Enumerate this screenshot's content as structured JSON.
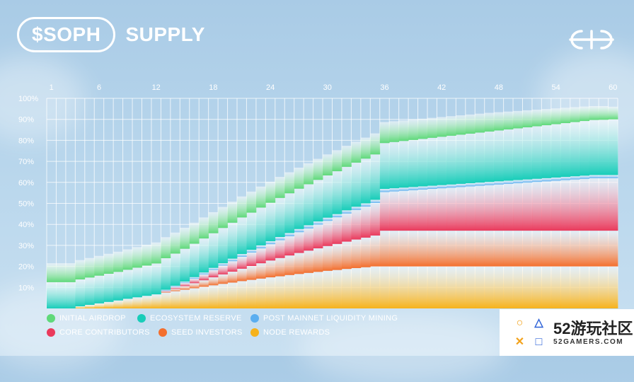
{
  "header": {
    "ticker": "$SOPH",
    "title": "SUPPLY",
    "logo_icon": "sophon-logo-icon"
  },
  "chart_data": {
    "type": "area",
    "stacked": true,
    "x": [
      1,
      2,
      3,
      4,
      5,
      6,
      7,
      8,
      9,
      10,
      11,
      12,
      13,
      14,
      15,
      16,
      17,
      18,
      19,
      20,
      21,
      22,
      23,
      24,
      25,
      26,
      27,
      28,
      29,
      30,
      31,
      32,
      33,
      34,
      35,
      36,
      37,
      38,
      39,
      40,
      41,
      42,
      43,
      44,
      45,
      46,
      47,
      48,
      49,
      50,
      51,
      52,
      53,
      54,
      55,
      56,
      57,
      58,
      59,
      60
    ],
    "x_ticks": [
      "1",
      "6",
      "12",
      "18",
      "24",
      "30",
      "36",
      "42",
      "48",
      "54",
      "60"
    ],
    "x_tick_values": [
      1,
      6,
      12,
      18,
      24,
      30,
      36,
      42,
      48,
      54,
      60
    ],
    "y_ticks": [
      "10%",
      "20%",
      "30%",
      "40%",
      "50%",
      "60%",
      "70%",
      "80%",
      "90%",
      "100%"
    ],
    "y_tick_values": [
      10,
      20,
      30,
      40,
      50,
      60,
      70,
      80,
      90,
      100
    ],
    "ylim": [
      0,
      100
    ],
    "xlim": [
      1,
      60
    ],
    "grid": true,
    "legend_position": "bottom",
    "series": [
      {
        "name": "NODE REWARDS",
        "color": "#f6b21b",
        "values": [
          0,
          0,
          0,
          1.0,
          1.7,
          2.4,
          3.1,
          3.8,
          4.6,
          5.3,
          6.0,
          6.7,
          7.5,
          8.2,
          8.9,
          9.6,
          10.3,
          11.0,
          11.7,
          12.3,
          13.0,
          13.6,
          14.2,
          14.8,
          15.3,
          15.9,
          16.4,
          16.9,
          17.4,
          17.9,
          18.3,
          18.8,
          19.2,
          19.6,
          20.0,
          20.0,
          20.0,
          20.0,
          20.0,
          20.0,
          20.0,
          20.0,
          20.0,
          20.0,
          20.0,
          20.0,
          20.0,
          20.0,
          20.0,
          20.0,
          20.0,
          20.0,
          20.0,
          20.0,
          20.0,
          20.0,
          20.0,
          20.0,
          20.0,
          20.0
        ]
      },
      {
        "name": "SEED INVESTORS",
        "color": "#f36f2e",
        "values": [
          0,
          0,
          0,
          0,
          0,
          0,
          0,
          0,
          0,
          0,
          0,
          0,
          0.5,
          1.1,
          1.7,
          2.4,
          3.1,
          3.8,
          4.5,
          5.2,
          5.9,
          6.6,
          7.3,
          8.0,
          8.7,
          9.3,
          10.0,
          10.6,
          11.2,
          11.8,
          12.4,
          13.0,
          13.6,
          14.1,
          14.7,
          17.0,
          17.0,
          17.0,
          17.0,
          17.0,
          17.0,
          17.0,
          17.0,
          17.0,
          17.0,
          17.0,
          17.0,
          17.0,
          17.0,
          17.0,
          17.0,
          17.0,
          17.0,
          17.0,
          17.0,
          17.0,
          17.0,
          17.0,
          17.0,
          17.0
        ]
      },
      {
        "name": "CORE CONTRIBUTORS",
        "color": "#ea3a5c",
        "values": [
          0,
          0,
          0,
          0,
          0,
          0,
          0,
          0,
          0,
          0,
          0,
          0,
          0.4,
          0.9,
          1.5,
          2.1,
          2.8,
          3.5,
          4.2,
          5.0,
          5.7,
          6.4,
          7.1,
          7.8,
          8.5,
          9.2,
          9.9,
          10.6,
          11.3,
          12.0,
          12.7,
          13.4,
          14.1,
          14.8,
          15.5,
          18.4,
          18.7,
          19.0,
          19.3,
          19.6,
          19.9,
          20.2,
          20.5,
          20.8,
          21.1,
          21.4,
          21.7,
          22.0,
          22.3,
          22.6,
          22.9,
          23.2,
          23.5,
          23.8,
          24.1,
          24.4,
          24.7,
          25.0,
          25.0,
          25.0
        ]
      },
      {
        "name": "POST MAINNET LIQUIDITY MINING",
        "color": "#5aaef0",
        "values": [
          0,
          0,
          0,
          0,
          0,
          0,
          0,
          0,
          0,
          0,
          0,
          0,
          0.5,
          0.6,
          0.7,
          0.8,
          0.9,
          1.0,
          1.1,
          1.2,
          1.3,
          1.3,
          1.4,
          1.4,
          1.5,
          1.5,
          1.5,
          1.5,
          1.5,
          1.5,
          1.5,
          1.5,
          1.5,
          1.5,
          1.5,
          1.5,
          1.5,
          1.5,
          1.5,
          1.5,
          1.5,
          1.5,
          1.5,
          1.5,
          1.5,
          1.5,
          1.5,
          1.5,
          1.5,
          1.5,
          1.5,
          1.5,
          1.5,
          1.5,
          1.5,
          1.5,
          1.5,
          1.5,
          1.5,
          1.5
        ]
      },
      {
        "name": "ECOSYSTEM RESERVE",
        "color": "#18cdb9",
        "values": [
          12.5,
          12.5,
          12.5,
          12.8,
          13.0,
          13.2,
          13.4,
          13.6,
          13.8,
          14.1,
          14.4,
          14.7,
          15.0,
          15.3,
          15.6,
          15.9,
          16.2,
          16.5,
          16.8,
          17.1,
          17.4,
          17.7,
          18.0,
          18.3,
          18.6,
          18.9,
          19.2,
          19.5,
          19.8,
          20.1,
          20.4,
          20.7,
          21.0,
          21.3,
          21.6,
          21.8,
          22.0,
          22.2,
          22.4,
          22.6,
          22.8,
          23.0,
          23.2,
          23.4,
          23.6,
          23.8,
          24.0,
          24.2,
          24.4,
          24.6,
          24.8,
          25.0,
          25.2,
          25.4,
          25.6,
          25.8,
          26.0,
          26.2,
          26.3,
          26.5
        ]
      },
      {
        "name": "INITIAL AIRDROP",
        "color": "#5fd97a",
        "values": [
          9.0,
          9.0,
          9.0,
          9.2,
          9.3,
          9.4,
          9.5,
          9.6,
          9.7,
          9.8,
          9.9,
          10.0,
          10.0,
          10.0,
          10.0,
          10.0,
          10.0,
          10.0,
          10.0,
          10.0,
          10.0,
          10.0,
          10.0,
          10.0,
          10.0,
          10.0,
          10.0,
          10.0,
          10.0,
          10.0,
          10.0,
          10.0,
          10.0,
          10.0,
          10.0,
          10.0,
          9.9,
          9.8,
          9.7,
          9.6,
          9.5,
          9.4,
          9.3,
          9.2,
          9.1,
          9.0,
          8.9,
          8.7,
          8.5,
          8.3,
          8.1,
          7.9,
          7.7,
          7.5,
          7.3,
          7.1,
          6.9,
          6.6,
          6.5,
          6.0
        ]
      }
    ]
  },
  "watermark": {
    "main": "52游玩社区",
    "sub": "52GAMERS.COM",
    "icon_name": "52gamers-logo-icon",
    "glyphs": [
      "○",
      "△",
      "✕",
      "□"
    ]
  }
}
